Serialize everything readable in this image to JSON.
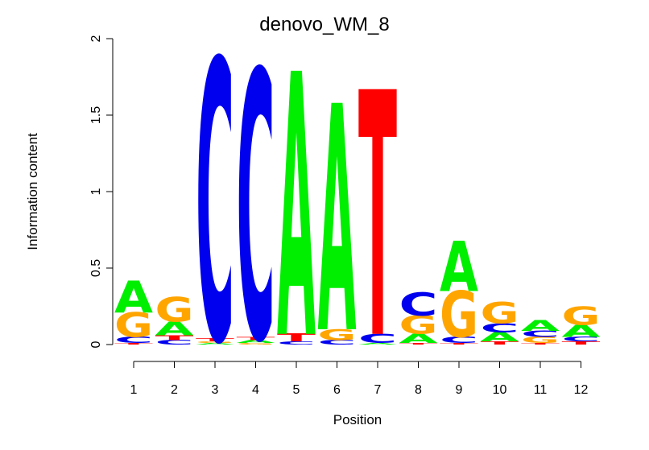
{
  "chart_data": {
    "type": "sequence-logo",
    "title": "denovo_WM_8",
    "xlabel": "Position",
    "ylabel": "Information content",
    "ylim": [
      0,
      2
    ],
    "yticks": [
      "0",
      "0.5",
      "1",
      "1.5",
      "2"
    ],
    "ytick_values": [
      0,
      0.5,
      1,
      1.5,
      2
    ],
    "categories": [
      "1",
      "2",
      "3",
      "4",
      "5",
      "6",
      "7",
      "8",
      "9",
      "10",
      "11",
      "12"
    ],
    "colors": {
      "A": "#00ee00",
      "C": "#0000ee",
      "G": "#ffa500",
      "T": "#ff0000"
    },
    "stacks": [
      [
        {
          "letter": "T",
          "height": 0.01
        },
        {
          "letter": "C",
          "height": 0.04
        },
        {
          "letter": "G",
          "height": 0.16
        },
        {
          "letter": "A",
          "height": 0.21
        }
      ],
      [
        {
          "letter": "C",
          "height": 0.03
        },
        {
          "letter": "T",
          "height": 0.03
        },
        {
          "letter": "A",
          "height": 0.09
        },
        {
          "letter": "G",
          "height": 0.16
        }
      ],
      [
        {
          "letter": "A",
          "height": 0.01
        },
        {
          "letter": "G",
          "height": 0.01
        },
        {
          "letter": "T",
          "height": 0.02
        },
        {
          "letter": "C",
          "height": 1.83
        }
      ],
      [
        {
          "letter": "G",
          "height": 0.01
        },
        {
          "letter": "A",
          "height": 0.02
        },
        {
          "letter": "T",
          "height": 0.02
        },
        {
          "letter": "C",
          "height": 1.75
        }
      ],
      [
        {
          "letter": "C",
          "height": 0.02
        },
        {
          "letter": "T",
          "height": 0.05
        },
        {
          "letter": "A",
          "height": 1.72
        }
      ],
      [
        {
          "letter": "C",
          "height": 0.03
        },
        {
          "letter": "G",
          "height": 0.07
        },
        {
          "letter": "A",
          "height": 1.48
        }
      ],
      [
        {
          "letter": "A",
          "height": 0.01
        },
        {
          "letter": "C",
          "height": 0.06
        },
        {
          "letter": "T",
          "height": 1.6
        }
      ],
      [
        {
          "letter": "T",
          "height": 0.01
        },
        {
          "letter": "A",
          "height": 0.06
        },
        {
          "letter": "G",
          "height": 0.12
        },
        {
          "letter": "C",
          "height": 0.15
        }
      ],
      [
        {
          "letter": "T",
          "height": 0.01
        },
        {
          "letter": "C",
          "height": 0.04
        },
        {
          "letter": "G",
          "height": 0.3
        },
        {
          "letter": "A",
          "height": 0.33
        }
      ],
      [
        {
          "letter": "T",
          "height": 0.02
        },
        {
          "letter": "A",
          "height": 0.06
        },
        {
          "letter": "C",
          "height": 0.06
        },
        {
          "letter": "G",
          "height": 0.14
        }
      ],
      [
        {
          "letter": "T",
          "height": 0.01
        },
        {
          "letter": "G",
          "height": 0.04
        },
        {
          "letter": "C",
          "height": 0.04
        },
        {
          "letter": "A",
          "height": 0.07
        }
      ],
      [
        {
          "letter": "T",
          "height": 0.02
        },
        {
          "letter": "C",
          "height": 0.03
        },
        {
          "letter": "A",
          "height": 0.08
        },
        {
          "letter": "G",
          "height": 0.12
        }
      ]
    ]
  }
}
